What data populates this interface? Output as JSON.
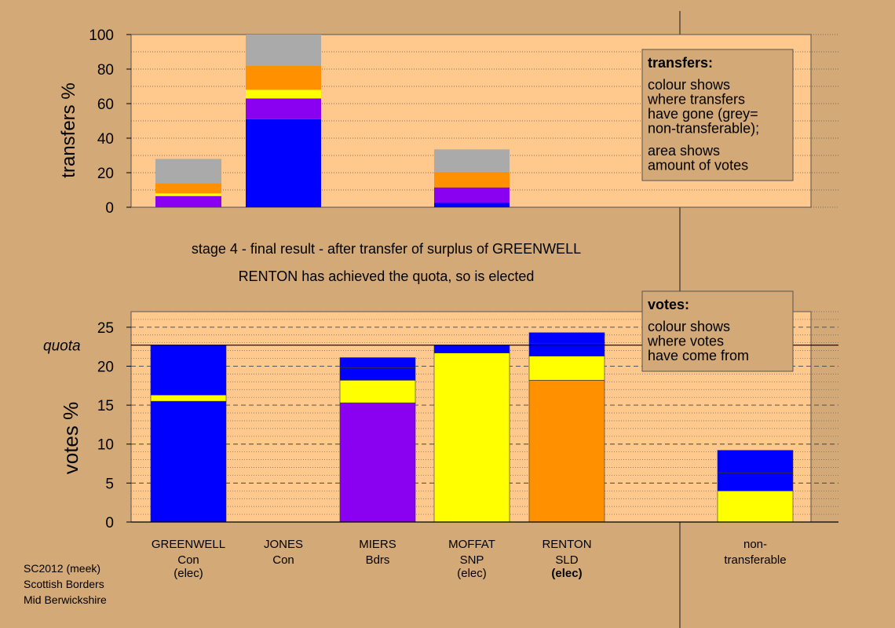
{
  "colors": {
    "background": "#d4a978",
    "plot_fill": "#ffc88c",
    "box_fill": "#d4a978",
    "grey": "#aaaaaa",
    "orange": "#ff9000",
    "yellow": "#ffff00",
    "purple": "#8a00f0",
    "blue": "#0000ff"
  },
  "stage_text": "stage 4 - final result - after transfer of surplus of GREENWELL",
  "elected_text": "RENTON has achieved the quota, so is elected",
  "transfers_box": {
    "title": "transfers:",
    "lines1": [
      "colour shows",
      "where transfers",
      "have gone (grey=",
      "non-transferable);"
    ],
    "lines2": [
      "area shows",
      "amount of votes"
    ]
  },
  "votes_box": {
    "title": "votes:",
    "lines": [
      "colour shows",
      "where votes",
      "have come from"
    ]
  },
  "quota_label": "quota",
  "footer": [
    "SC2012 (meek)",
    "Scottish Borders",
    "Mid Berwickshire"
  ],
  "candidates": [
    {
      "name": "GREENWELL",
      "party": "Con",
      "status": "(elec)",
      "status_bold": false
    },
    {
      "name": "JONES",
      "party": "Con",
      "status": "",
      "status_bold": false
    },
    {
      "name": "MIERS",
      "party": "Bdrs",
      "status": "",
      "status_bold": false
    },
    {
      "name": "MOFFAT",
      "party": "SNP",
      "status": "(elec)",
      "status_bold": false
    },
    {
      "name": "RENTON",
      "party": "SLD",
      "status": "(elec)",
      "status_bold": true
    },
    {
      "name": "",
      "party": "",
      "status": "",
      "status_bold": false
    },
    {
      "name": "non-",
      "party": "transferable",
      "status": "",
      "status_bold": false
    }
  ],
  "chart_data": [
    {
      "type": "bar",
      "stacked": true,
      "ylabel": "transfers %",
      "ylim": [
        0,
        100
      ],
      "yticks": [
        0,
        20,
        40,
        60,
        80,
        100
      ],
      "grid": "dotted every 10",
      "categories": [
        "GREENWELL",
        "JONES",
        "MIERS",
        "MOFFAT",
        "RENTON",
        "",
        "non-transferable"
      ],
      "stacks": [
        [
          {
            "color": "purple",
            "value": 6.5
          },
          {
            "color": "yellow",
            "value": 1.5
          },
          {
            "color": "orange",
            "value": 6
          },
          {
            "color": "grey",
            "value": 14
          }
        ],
        [
          {
            "color": "blue",
            "value": 51
          },
          {
            "color": "purple",
            "value": 12
          },
          {
            "color": "yellow",
            "value": 5
          },
          {
            "color": "orange",
            "value": 14
          },
          {
            "color": "grey",
            "value": 18
          }
        ],
        [],
        [
          {
            "color": "blue",
            "value": 2.5
          },
          {
            "color": "purple",
            "value": 9
          },
          {
            "color": "orange",
            "value": 9
          },
          {
            "color": "grey",
            "value": 13
          }
        ],
        [],
        [],
        []
      ]
    },
    {
      "type": "bar",
      "stacked": true,
      "ylabel": "votes %",
      "ylim": [
        0,
        27
      ],
      "yticks": [
        0,
        5,
        10,
        15,
        20,
        25
      ],
      "quota": 22.7,
      "grid": "dashed every 5, dotted every 1",
      "categories": [
        "GREENWELL",
        "JONES",
        "MIERS",
        "MOFFAT",
        "RENTON",
        "",
        "non-transferable"
      ],
      "stacks": [
        [
          {
            "color": "blue",
            "value": 15.5
          },
          {
            "color": "yellow",
            "value": 0.8
          },
          {
            "color": "blue",
            "value": 6.4
          }
        ],
        [],
        [
          {
            "color": "purple",
            "value": 15.3
          },
          {
            "color": "yellow",
            "value": 2.9
          },
          {
            "color": "blue",
            "value": 1.6
          },
          {
            "color": "blue",
            "value": 1.3
          }
        ],
        [
          {
            "color": "yellow",
            "value": 21.7
          },
          {
            "color": "blue",
            "value": 1.0
          }
        ],
        [
          {
            "color": "orange",
            "value": 18.2
          },
          {
            "color": "yellow",
            "value": 3.1
          },
          {
            "color": "blue",
            "value": 1.6
          },
          {
            "color": "blue",
            "value": 1.4
          }
        ],
        [],
        [
          {
            "color": "yellow",
            "value": 4.0
          },
          {
            "color": "blue",
            "value": 2.3
          },
          {
            "color": "blue",
            "value": 2.9
          }
        ]
      ]
    }
  ]
}
